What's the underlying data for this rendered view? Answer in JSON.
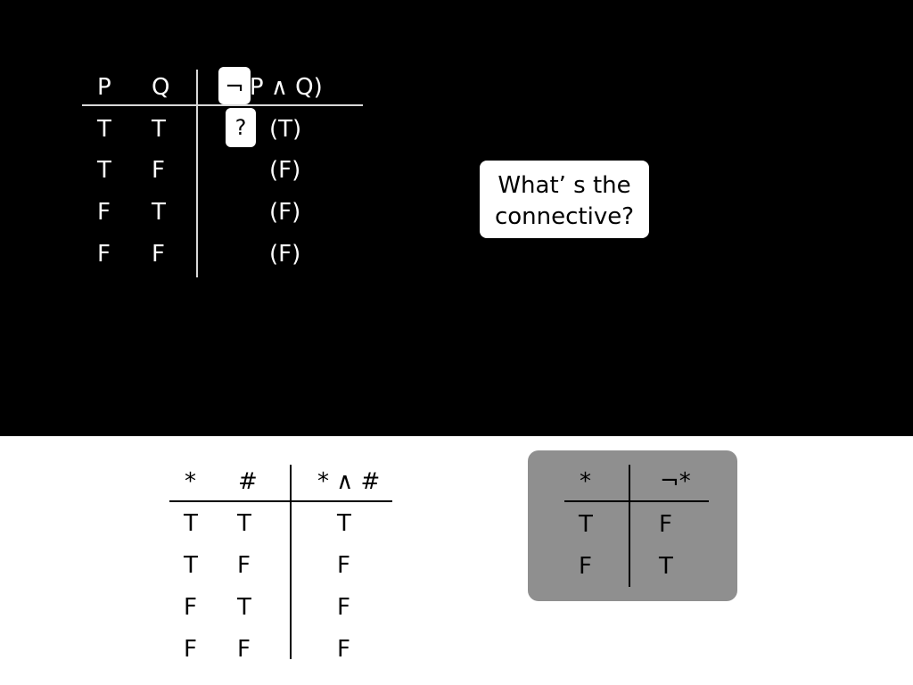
{
  "main_table": {
    "headers": [
      "P",
      "Q",
      "¬(P ∧ Q)"
    ],
    "rows": [
      {
        "p": "T",
        "q": "T",
        "result": "(T)"
      },
      {
        "p": "T",
        "q": "F",
        "result": "(F)"
      },
      {
        "p": "F",
        "q": "T",
        "result": "(F)"
      },
      {
        "p": "F",
        "q": "F",
        "result": "(F)"
      }
    ],
    "highlight_symbol": "¬",
    "question_mark": "?"
  },
  "callout": {
    "line1": "What’ s the",
    "line2": "connective?"
  },
  "and_table": {
    "headers": [
      "*",
      "#",
      "* ∧ #"
    ],
    "rows": [
      {
        "a": "T",
        "b": "T",
        "result": "T"
      },
      {
        "a": "T",
        "b": "F",
        "result": "F"
      },
      {
        "a": "F",
        "b": "T",
        "result": "F"
      },
      {
        "a": "F",
        "b": "F",
        "result": "F"
      }
    ]
  },
  "not_table": {
    "headers": [
      "*",
      "¬*"
    ],
    "rows": [
      {
        "a": "T",
        "result": "F"
      },
      {
        "a": "F",
        "result": "T"
      }
    ]
  },
  "colors": {
    "top_background": "#000000",
    "bottom_background": "#ffffff",
    "highlight_box": "#ffffff",
    "not_table_card": "#8f8f8f"
  }
}
